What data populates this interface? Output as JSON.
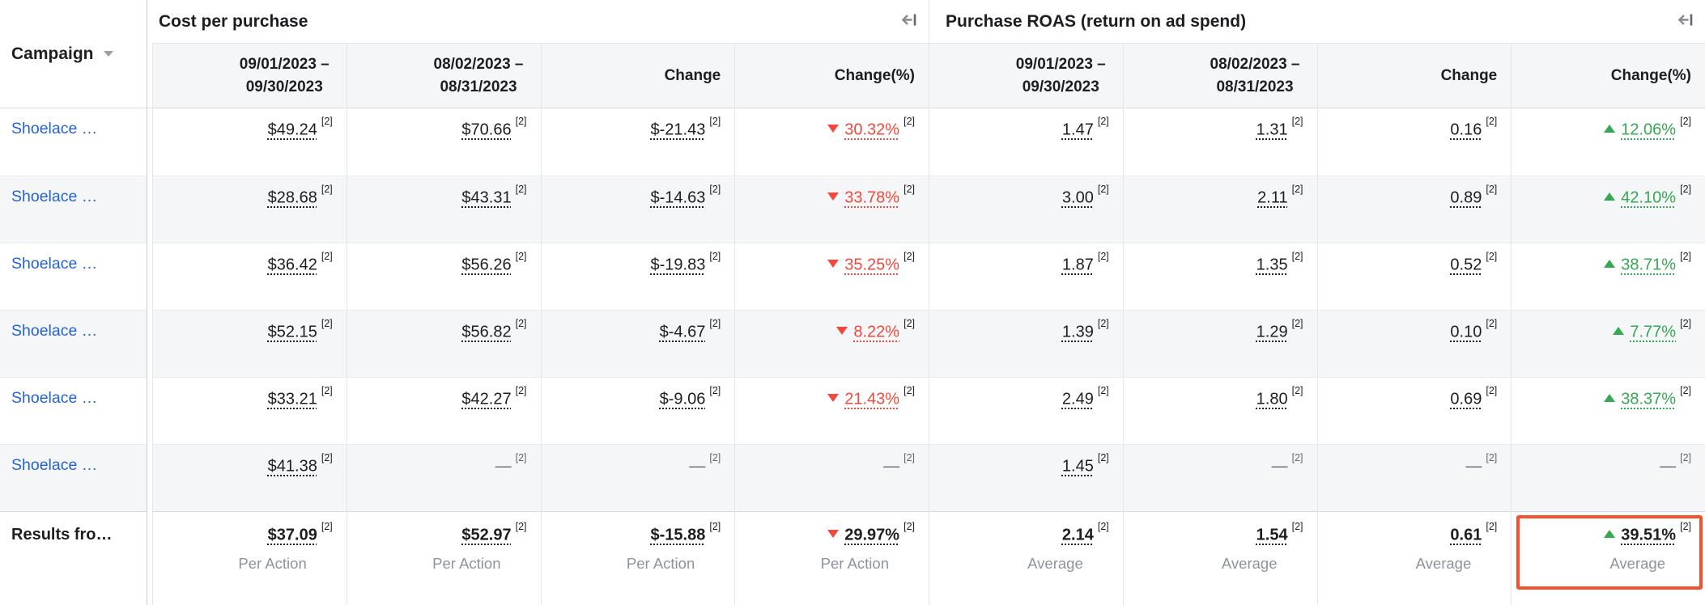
{
  "table": {
    "campaign_column": {
      "header": "Campaign",
      "sort_icon": "caret-down-icon"
    },
    "groups": [
      {
        "title": "Cost per purchase",
        "collapse_icon": "collapse-columns-icon",
        "columns": [
          "09/01/2023 –\n09/30/2023",
          "08/02/2023 –\n08/31/2023",
          "Change",
          "Change(%)"
        ]
      },
      {
        "title": "Purchase ROAS (return on ad spend)",
        "collapse_icon": "collapse-columns-icon",
        "columns": [
          "09/01/2023 –\n09/30/2023",
          "08/02/2023 –\n08/31/2023",
          "Change",
          "Change(%)"
        ]
      }
    ],
    "rows": [
      {
        "campaign": "Shoelace …",
        "cells": [
          {
            "value": "$49.24",
            "footnote": "[2]"
          },
          {
            "value": "$70.66",
            "footnote": "[2]"
          },
          {
            "value": "$-21.43",
            "footnote": "[2]"
          },
          {
            "value": "30.32%",
            "footnote": "[2]",
            "trend": "down",
            "color": "red"
          },
          {
            "value": "1.47",
            "footnote": "[2]"
          },
          {
            "value": "1.31",
            "footnote": "[2]"
          },
          {
            "value": "0.16",
            "footnote": "[2]"
          },
          {
            "value": "12.06%",
            "footnote": "[2]",
            "trend": "up",
            "color": "green"
          }
        ]
      },
      {
        "campaign": "Shoelace …",
        "cells": [
          {
            "value": "$28.68",
            "footnote": "[2]"
          },
          {
            "value": "$43.31",
            "footnote": "[2]"
          },
          {
            "value": "$-14.63",
            "footnote": "[2]"
          },
          {
            "value": "33.78%",
            "footnote": "[2]",
            "trend": "down",
            "color": "red"
          },
          {
            "value": "3.00",
            "footnote": "[2]"
          },
          {
            "value": "2.11",
            "footnote": "[2]"
          },
          {
            "value": "0.89",
            "footnote": "[2]"
          },
          {
            "value": "42.10%",
            "footnote": "[2]",
            "trend": "up",
            "color": "green"
          }
        ]
      },
      {
        "campaign": "Shoelace …",
        "cells": [
          {
            "value": "$36.42",
            "footnote": "[2]"
          },
          {
            "value": "$56.26",
            "footnote": "[2]"
          },
          {
            "value": "$-19.83",
            "footnote": "[2]"
          },
          {
            "value": "35.25%",
            "footnote": "[2]",
            "trend": "down",
            "color": "red"
          },
          {
            "value": "1.87",
            "footnote": "[2]"
          },
          {
            "value": "1.35",
            "footnote": "[2]"
          },
          {
            "value": "0.52",
            "footnote": "[2]"
          },
          {
            "value": "38.71%",
            "footnote": "[2]",
            "trend": "up",
            "color": "green"
          }
        ]
      },
      {
        "campaign": "Shoelace …",
        "cells": [
          {
            "value": "$52.15",
            "footnote": "[2]"
          },
          {
            "value": "$56.82",
            "footnote": "[2]"
          },
          {
            "value": "$-4.67",
            "footnote": "[2]"
          },
          {
            "value": "8.22%",
            "footnote": "[2]",
            "trend": "down",
            "color": "red"
          },
          {
            "value": "1.39",
            "footnote": "[2]"
          },
          {
            "value": "1.29",
            "footnote": "[2]"
          },
          {
            "value": "0.10",
            "footnote": "[2]"
          },
          {
            "value": "7.77%",
            "footnote": "[2]",
            "trend": "up",
            "color": "green"
          }
        ]
      },
      {
        "campaign": "Shoelace …",
        "cells": [
          {
            "value": "$33.21",
            "footnote": "[2]"
          },
          {
            "value": "$42.27",
            "footnote": "[2]"
          },
          {
            "value": "$-9.06",
            "footnote": "[2]"
          },
          {
            "value": "21.43%",
            "footnote": "[2]",
            "trend": "down",
            "color": "red"
          },
          {
            "value": "2.49",
            "footnote": "[2]"
          },
          {
            "value": "1.80",
            "footnote": "[2]"
          },
          {
            "value": "0.69",
            "footnote": "[2]"
          },
          {
            "value": "38.37%",
            "footnote": "[2]",
            "trend": "up",
            "color": "green"
          }
        ]
      },
      {
        "campaign": "Shoelace …",
        "cells": [
          {
            "value": "$41.38",
            "footnote": "[2]"
          },
          {
            "value": "—",
            "footnote": "[2]"
          },
          {
            "value": "—",
            "footnote": "[2]"
          },
          {
            "value": "—",
            "footnote": "[2]"
          },
          {
            "value": "1.45",
            "footnote": "[2]"
          },
          {
            "value": "—",
            "footnote": "[2]"
          },
          {
            "value": "—",
            "footnote": "[2]"
          },
          {
            "value": "—",
            "footnote": "[2]"
          }
        ]
      }
    ],
    "footer": {
      "label": "Results fro…",
      "cells": [
        {
          "value": "$37.09",
          "footnote": "[2]",
          "subtitle": "Per Action"
        },
        {
          "value": "$52.97",
          "footnote": "[2]",
          "subtitle": "Per Action"
        },
        {
          "value": "$-15.88",
          "footnote": "[2]",
          "subtitle": "Per Action"
        },
        {
          "value": "29.97%",
          "footnote": "[2]",
          "subtitle": "Per Action",
          "trend": "down"
        },
        {
          "value": "2.14",
          "footnote": "[2]",
          "subtitle": "Average"
        },
        {
          "value": "1.54",
          "footnote": "[2]",
          "subtitle": "Average"
        },
        {
          "value": "0.61",
          "footnote": "[2]",
          "subtitle": "Average"
        },
        {
          "value": "39.51%",
          "footnote": "[2]",
          "subtitle": "Average",
          "trend": "up",
          "highlighted": true
        }
      ]
    },
    "colors": {
      "negative_red": "#f5483c",
      "positive_green": "#35a853",
      "link_blue": "#2364d2",
      "highlight_border": "#f4512e"
    }
  }
}
